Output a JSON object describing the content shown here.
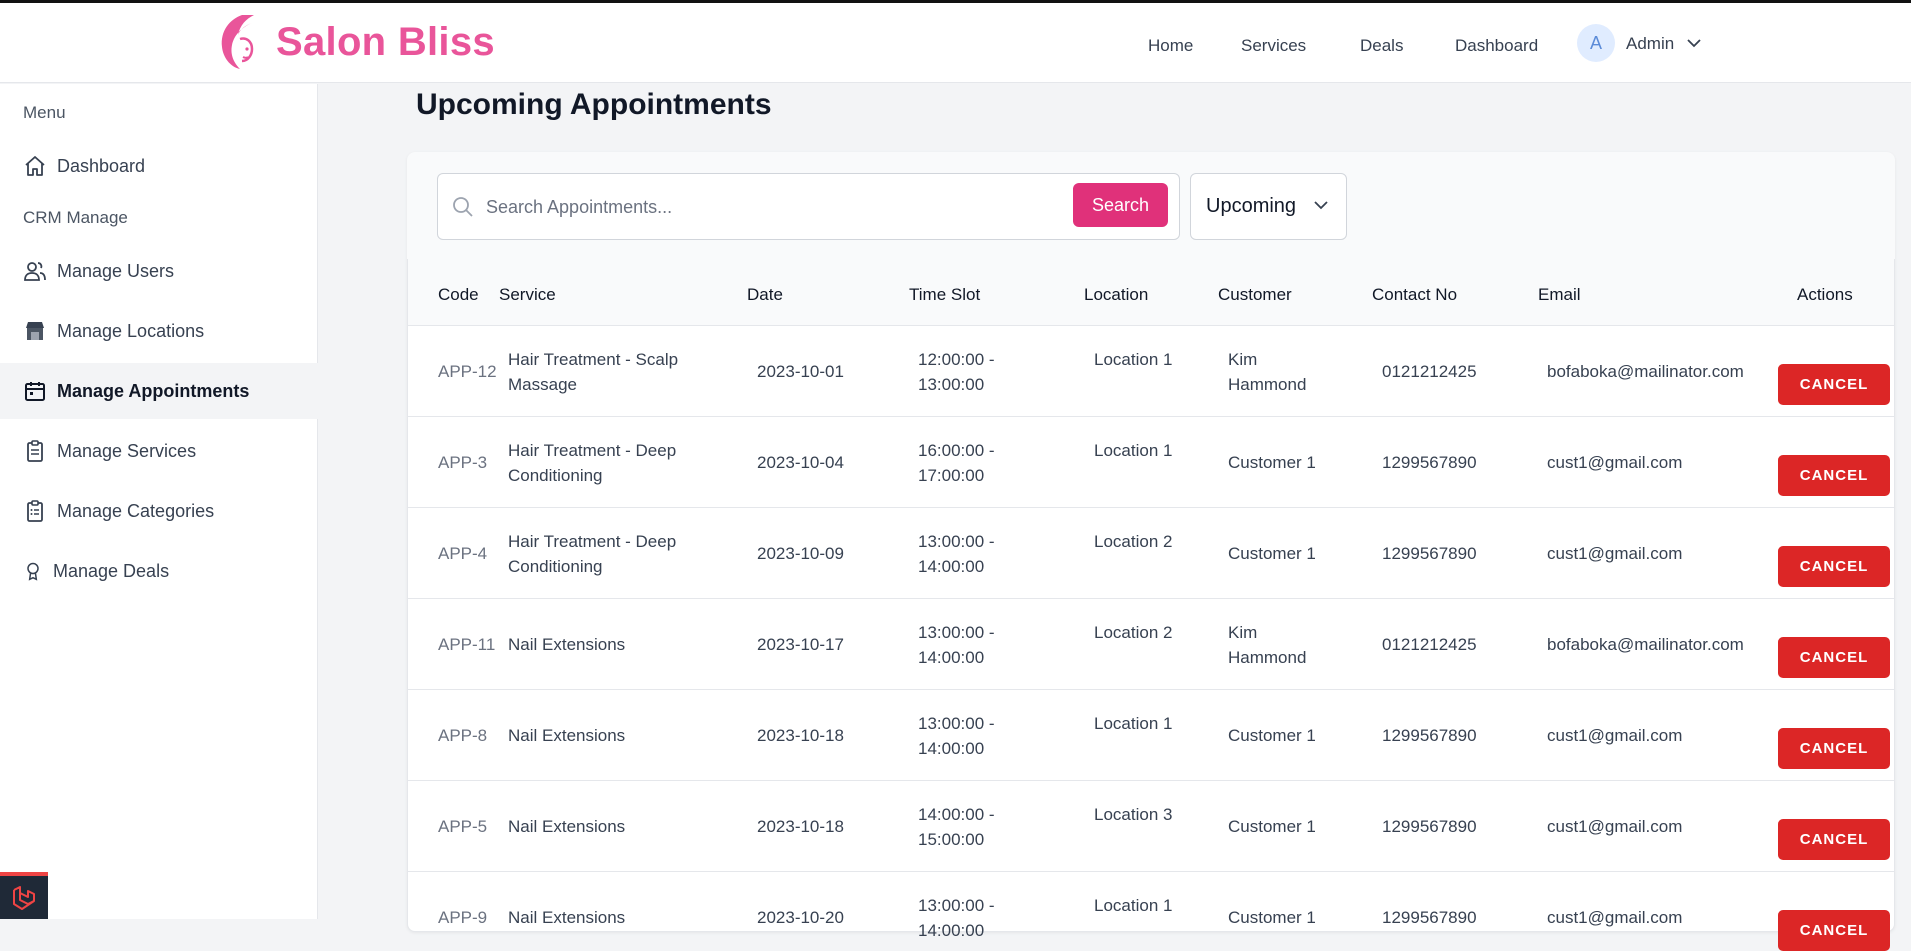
{
  "brand": {
    "name": "Salon Bliss"
  },
  "nav": {
    "links": [
      "Home",
      "Services",
      "Deals",
      "Dashboard"
    ],
    "avatar_initial": "A",
    "user_name": "Admin"
  },
  "sidebar": {
    "menu_heading": "Menu",
    "crm_heading": "CRM Manage",
    "items": [
      {
        "label": "Dashboard",
        "icon": "home-icon"
      },
      {
        "label": "Manage Users",
        "icon": "users-icon"
      },
      {
        "label": "Manage Locations",
        "icon": "store-icon"
      },
      {
        "label": "Manage Appointments",
        "icon": "calendar-icon",
        "active": true
      },
      {
        "label": "Manage Services",
        "icon": "clipboard-icon"
      },
      {
        "label": "Manage Categories",
        "icon": "clipboard-list-icon"
      },
      {
        "label": "Manage Deals",
        "icon": "badge-icon"
      }
    ]
  },
  "page": {
    "title": "Upcoming Appointments"
  },
  "search": {
    "placeholder": "Search Appointments...",
    "button_label": "Search"
  },
  "filter": {
    "selected": "Upcoming"
  },
  "table": {
    "headers": [
      "Code",
      "Service",
      "Date",
      "Time Slot",
      "Location",
      "Customer",
      "Contact No",
      "Email",
      "Actions"
    ],
    "rows": [
      {
        "code": "APP-12",
        "service": "Hair Treatment - Scalp Massage",
        "date": "2023-10-01",
        "time": "12:00:00 - 13:00:00",
        "location": "Location 1",
        "customer": "Kim Hammond",
        "contact": "0121212425",
        "email": "bofaboka@mailinator.com",
        "action": "CANCEL"
      },
      {
        "code": "APP-3",
        "service": "Hair Treatment - Deep Conditioning",
        "date": "2023-10-04",
        "time": "16:00:00 - 17:00:00",
        "location": "Location 1",
        "customer": "Customer 1",
        "contact": "1299567890",
        "email": "cust1@gmail.com",
        "action": "CANCEL"
      },
      {
        "code": "APP-4",
        "service": "Hair Treatment - Deep Conditioning",
        "date": "2023-10-09",
        "time": "13:00:00 - 14:00:00",
        "location": "Location 2",
        "customer": "Customer 1",
        "contact": "1299567890",
        "email": "cust1@gmail.com",
        "action": "CANCEL"
      },
      {
        "code": "APP-11",
        "service": "Nail Extensions",
        "date": "2023-10-17",
        "time": "13:00:00 - 14:00:00",
        "location": "Location 2",
        "customer": "Kim Hammond",
        "contact": "0121212425",
        "email": "bofaboka@mailinator.com",
        "action": "CANCEL"
      },
      {
        "code": "APP-8",
        "service": "Nail Extensions",
        "date": "2023-10-18",
        "time": "13:00:00 - 14:00:00",
        "location": "Location 1",
        "customer": "Customer 1",
        "contact": "1299567890",
        "email": "cust1@gmail.com",
        "action": "CANCEL"
      },
      {
        "code": "APP-5",
        "service": "Nail Extensions",
        "date": "2023-10-18",
        "time": "14:00:00 - 15:00:00",
        "location": "Location 3",
        "customer": "Customer 1",
        "contact": "1299567890",
        "email": "cust1@gmail.com",
        "action": "CANCEL"
      },
      {
        "code": "APP-9",
        "service": "Nail Extensions",
        "date": "2023-10-20",
        "time": "13:00:00 - 14:00:00",
        "location": "Location 1",
        "customer": "Customer 1",
        "contact": "1299567890",
        "email": "cust1@gmail.com",
        "action": "CANCEL"
      }
    ]
  },
  "colors": {
    "brand": "#e9559a",
    "search_button": "#e0317a",
    "cancel_button": "#dc2626"
  }
}
